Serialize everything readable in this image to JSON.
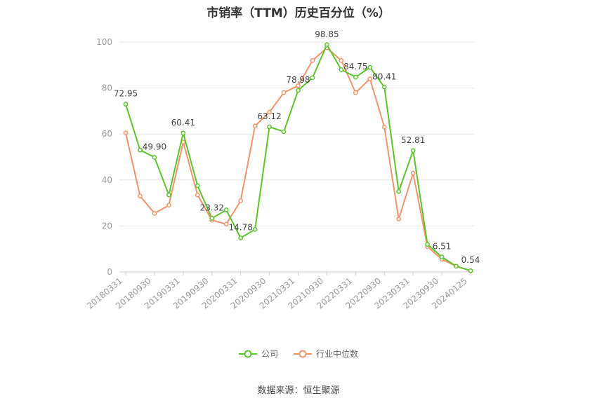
{
  "chart_data": {
    "type": "line",
    "title": "市销率（TTM）历史百分位（%）",
    "x": [
      "20180331",
      "20180630",
      "20180930",
      "20181231",
      "20190331",
      "20190630",
      "20190930",
      "20191231",
      "20200331",
      "20200630",
      "20200930",
      "20201231",
      "20210331",
      "20210630",
      "20210930",
      "20211231",
      "20220331",
      "20220630",
      "20220930",
      "20221231",
      "20230331",
      "20230630",
      "20230930",
      "20231231",
      "20240125"
    ],
    "x_tick_labels": [
      "20180331",
      "20180930",
      "20190331",
      "20190930",
      "20200331",
      "20200930",
      "20210331",
      "20210930",
      "20220331",
      "20220930",
      "20230331",
      "20230930",
      "20240125"
    ],
    "y_ticks": [
      "0",
      "20",
      "40",
      "60",
      "80",
      "100"
    ],
    "ylim": [
      0,
      100
    ],
    "grid": "horizontal",
    "legend_position": "bottom",
    "series": [
      {
        "name": "公司",
        "color": "#5bc42b",
        "values": [
          72.95,
          53.0,
          49.9,
          33.5,
          60.41,
          37.5,
          23.32,
          27.0,
          14.78,
          18.5,
          63.12,
          61.0,
          78.98,
          84.5,
          98.85,
          88.0,
          84.75,
          89.0,
          80.41,
          35.0,
          52.81,
          12.0,
          6.51,
          2.5,
          0.54
        ],
        "point_labels": [
          "72.95",
          "",
          "49.90",
          "",
          "60.41",
          "",
          "23.32",
          "",
          "14.78",
          "",
          "63.12",
          "",
          "78.98",
          "",
          "98.85",
          "",
          "84.75",
          "",
          "80.41",
          "",
          "52.81",
          "",
          "6.51",
          "",
          "0.54"
        ]
      },
      {
        "name": "行业中位数",
        "color": "#f0936a",
        "values": [
          60.5,
          33.0,
          25.5,
          29.0,
          56.5,
          33.5,
          22.5,
          20.8,
          31.0,
          63.5,
          69.5,
          78.0,
          81.0,
          92.0,
          97.5,
          92.0,
          78.0,
          84.0,
          63.0,
          23.0,
          43.0,
          11.0,
          5.5,
          2.5,
          0.5
        ]
      }
    ]
  },
  "source": "数据来源：恒生聚源",
  "legend": {
    "items": [
      "公司",
      "行业中位数"
    ]
  }
}
